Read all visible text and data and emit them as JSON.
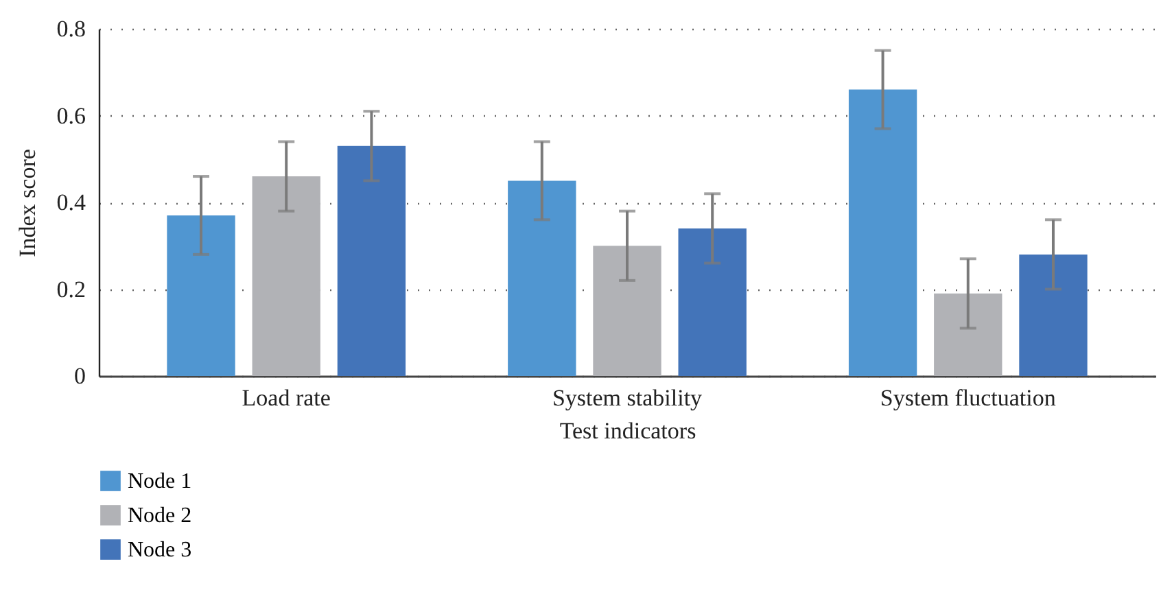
{
  "chart_data": {
    "type": "bar",
    "xlabel": "Test indicators",
    "ylabel": "Index score",
    "categories": [
      "Load rate",
      "System stability",
      "System fluctuation"
    ],
    "series": [
      {
        "name": "Node 1",
        "color": "#5096d1",
        "values": [
          0.37,
          0.45,
          0.66
        ],
        "errors": [
          0.09,
          0.09,
          0.09
        ]
      },
      {
        "name": "Node 2",
        "color": "#b1b2b6",
        "values": [
          0.46,
          0.3,
          0.19
        ],
        "errors": [
          0.08,
          0.08,
          0.08
        ]
      },
      {
        "name": "Node 3",
        "color": "#4374b9",
        "values": [
          0.53,
          0.34,
          0.28
        ],
        "errors": [
          0.08,
          0.08,
          0.08
        ]
      }
    ],
    "ylim": [
      0,
      0.8
    ],
    "yticks": [
      0,
      0.2,
      0.4,
      0.6,
      0.8
    ],
    "grid": "y",
    "legend": "bottom left"
  }
}
